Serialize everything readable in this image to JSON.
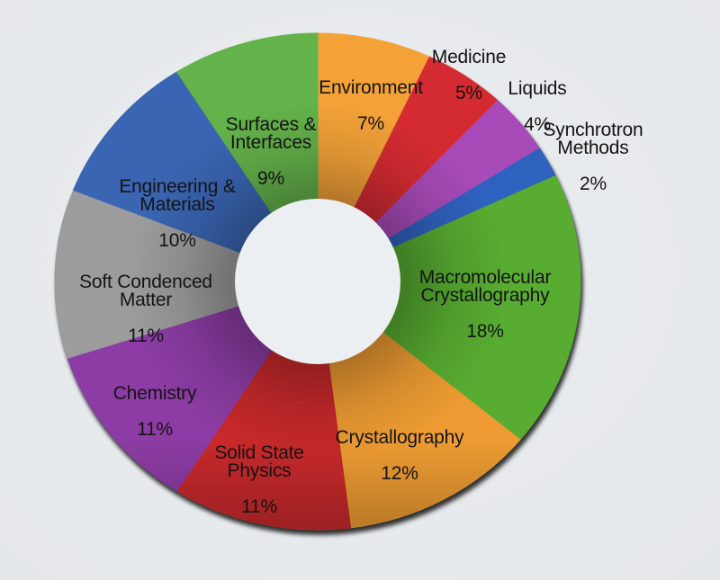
{
  "colors": {
    "background": "#E6E9EB",
    "hole": "#ECEFF1",
    "label_text": "#141414"
  },
  "chart_data": {
    "type": "pie",
    "subtype": "donut",
    "title": "",
    "unit": "percent",
    "direction": "clockwise",
    "start_angle": "12 o'clock",
    "total": 100,
    "slices": [
      {
        "name": "Environment",
        "value": 7,
        "label": "Environment",
        "value_label": "7%",
        "color": "#F4A238"
      },
      {
        "name": "Medicine",
        "value": 5,
        "label": "Medicine",
        "value_label": "5%",
        "color": "#D42B32"
      },
      {
        "name": "Liquids",
        "value": 4,
        "label": "Liquids",
        "value_label": "4%",
        "color": "#A84BB8"
      },
      {
        "name": "Synchrotron Methods",
        "value": 2,
        "label": "Synchrotron\nMethods",
        "value_label": "2%",
        "color": "#2F62BE"
      },
      {
        "name": "Macromolecular Crystallography",
        "value": 18,
        "label": "Macromolecular\nCrystallography",
        "value_label": "18%",
        "color": "#58AC31"
      },
      {
        "name": "Crystallography",
        "value": 12,
        "label": "Crystallography",
        "value_label": "12%",
        "color": "#ED9B32"
      },
      {
        "name": "Solid State Physics",
        "value": 11,
        "label": "Solid State\nPhysics",
        "value_label": "11%",
        "color": "#C8292B"
      },
      {
        "name": "Chemistry",
        "value": 11,
        "label": "Chemistry",
        "value_label": "11%",
        "color": "#8C3CA4"
      },
      {
        "name": "Soft Condenced Matter",
        "value": 11,
        "label": "Soft Condenced\nMatter",
        "value_label": "11%",
        "color": "#9C9C9C"
      },
      {
        "name": "Engineering & Materials",
        "value": 10,
        "label": "Engineering &\nMaterials",
        "value_label": "10%",
        "color": "#3A65B2"
      },
      {
        "name": "Surfaces & Interfaces",
        "value": 9,
        "label": "Surfaces &\nInterfaces",
        "value_label": "9%",
        "color": "#64B24A"
      }
    ]
  }
}
